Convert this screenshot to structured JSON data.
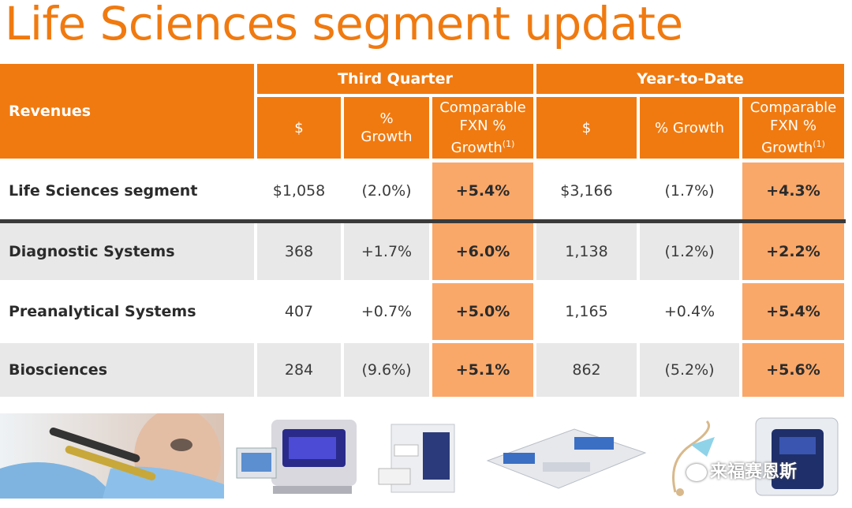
{
  "title": "Life Sciences segment update",
  "table": {
    "corner_label": "Revenues",
    "groups": [
      "Third Quarter",
      "Year-to-Date"
    ],
    "col_dollar": "$",
    "col_growth_line1": "%",
    "col_growth_line2": "Growth",
    "col_growth_inline": "% Growth",
    "col_fxn_line1": "Comparable",
    "col_fxn_line2": "FXN %",
    "col_fxn_line3": "Growth",
    "col_fxn_note": "(1)",
    "rows": [
      {
        "label": "Life Sciences segment",
        "q_dollar": "$1,058",
        "q_growth": "(2.0%)",
        "q_fxn": "+5.4%",
        "y_dollar": "$3,166",
        "y_growth": "(1.7%)",
        "y_fxn": "+4.3%"
      },
      {
        "label": "Diagnostic Systems",
        "q_dollar": "368",
        "q_growth": "+1.7%",
        "q_fxn": "+6.0%",
        "y_dollar": "1,138",
        "y_growth": "(1.2%)",
        "y_fxn": "+2.2%"
      },
      {
        "label": "Preanalytical Systems",
        "q_dollar": "407",
        "q_growth": "+0.7%",
        "q_fxn": "+5.0%",
        "y_dollar": "1,165",
        "y_growth": "+0.4%",
        "y_fxn": "+5.4%"
      },
      {
        "label": "Biosciences",
        "q_dollar": "284",
        "q_growth": "(9.6%)",
        "q_fxn": "+5.1%",
        "y_dollar": "862",
        "y_growth": "(5.2%)",
        "y_fxn": "+5.6%"
      }
    ]
  },
  "watermark": "来福赛恩斯",
  "colors": {
    "accent": "#f07a10",
    "highlight": "#f9a86a",
    "row_grey": "#e8e8e8"
  },
  "images": [
    "lab-technician-photo",
    "diagnostic-instrument-photo",
    "analyzer-instrument-photo",
    "automation-line-photo",
    "blood-collection-set-photo",
    "cell-analyzer-photo"
  ]
}
